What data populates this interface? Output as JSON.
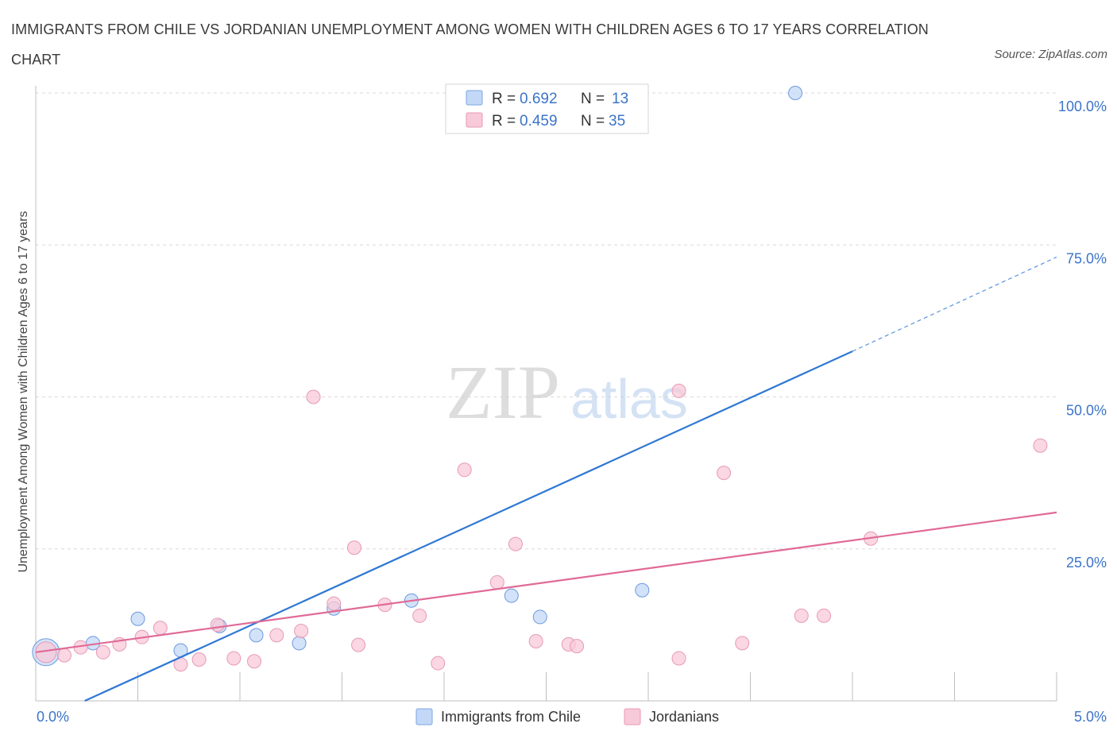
{
  "title": "IMMIGRANTS FROM CHILE VS JORDANIAN UNEMPLOYMENT AMONG WOMEN WITH CHILDREN AGES 6 TO 17 YEARS CORRELATION CHART",
  "source": "Source: ZipAtlas.com",
  "watermark": {
    "zip": "ZIP",
    "atlas": "atlas"
  },
  "colors": {
    "blue": "#2f78d4",
    "blue_fill": "#c3d8f7",
    "pink": "#e06a96",
    "pink_fill": "#f8c9d8",
    "axis_label": "#3b74c9",
    "grid": "#d9d9d9"
  },
  "chart_data": {
    "type": "scatter",
    "title": "IMMIGRANTS FROM CHILE VS JORDANIAN UNEMPLOYMENT AMONG WOMEN WITH CHILDREN AGES 6 TO 17 YEARS CORRELATION CHART",
    "xlabel": "",
    "ylabel": "Unemployment Among Women with Children Ages 6 to 17 years",
    "xlim": [
      0,
      5
    ],
    "ylim": [
      0,
      100
    ],
    "x_tick_labels": [
      {
        "value": 0,
        "label": "0.0%"
      },
      {
        "value": 5,
        "label": "5.0%"
      }
    ],
    "y_tick_labels": [
      {
        "value": 25,
        "label": "25.0%"
      },
      {
        "value": 50,
        "label": "50.0%"
      },
      {
        "value": 75,
        "label": "75.0%"
      },
      {
        "value": 100,
        "label": "100.0%"
      }
    ],
    "legend": {
      "position": "top-center"
    },
    "bottom_legend": [
      "Immigrants from Chile",
      "Jordanians"
    ],
    "series": [
      {
        "name": "Immigrants from Chile",
        "color": "#2f78d4",
        "R": "0.692",
        "N": "13",
        "points": [
          {
            "x": 0.05,
            "y": 8.0,
            "big": true
          },
          {
            "x": 0.28,
            "y": 9.5
          },
          {
            "x": 0.5,
            "y": 13.5
          },
          {
            "x": 0.71,
            "y": 8.3
          },
          {
            "x": 0.9,
            "y": 12.3
          },
          {
            "x": 1.08,
            "y": 10.8
          },
          {
            "x": 1.29,
            "y": 9.5
          },
          {
            "x": 1.46,
            "y": 15.2
          },
          {
            "x": 1.84,
            "y": 16.5
          },
          {
            "x": 2.33,
            "y": 17.3
          },
          {
            "x": 2.47,
            "y": 13.8
          },
          {
            "x": 2.97,
            "y": 18.2
          },
          {
            "x": 3.72,
            "y": 100.0
          }
        ],
        "trend": {
          "x0": 0.24,
          "y0": 0.0,
          "x1": 4.0,
          "y1": 57.5,
          "dash_to_x": 5.0,
          "dash_to_y": 73.0
        }
      },
      {
        "name": "Jordanians",
        "color": "#e06a96",
        "R": "0.459",
        "N": "35",
        "points": [
          {
            "x": 0.05,
            "y": 8.0,
            "big": true
          },
          {
            "x": 0.14,
            "y": 7.5
          },
          {
            "x": 0.22,
            "y": 8.8
          },
          {
            "x": 0.33,
            "y": 8.0
          },
          {
            "x": 0.41,
            "y": 9.3
          },
          {
            "x": 0.52,
            "y": 10.5
          },
          {
            "x": 0.61,
            "y": 12.0
          },
          {
            "x": 0.71,
            "y": 6.0
          },
          {
            "x": 0.8,
            "y": 6.8
          },
          {
            "x": 0.89,
            "y": 12.5
          },
          {
            "x": 0.97,
            "y": 7.0
          },
          {
            "x": 1.07,
            "y": 6.5
          },
          {
            "x": 1.18,
            "y": 10.8
          },
          {
            "x": 1.3,
            "y": 11.5
          },
          {
            "x": 1.36,
            "y": 50.0
          },
          {
            "x": 1.46,
            "y": 16.0
          },
          {
            "x": 1.58,
            "y": 9.2
          },
          {
            "x": 1.56,
            "y": 25.2
          },
          {
            "x": 1.71,
            "y": 15.8
          },
          {
            "x": 1.88,
            "y": 14.0
          },
          {
            "x": 1.97,
            "y": 6.2
          },
          {
            "x": 2.1,
            "y": 38.0
          },
          {
            "x": 2.26,
            "y": 19.5
          },
          {
            "x": 2.35,
            "y": 25.8
          },
          {
            "x": 2.45,
            "y": 9.8
          },
          {
            "x": 2.61,
            "y": 9.3
          },
          {
            "x": 2.65,
            "y": 9.0
          },
          {
            "x": 3.15,
            "y": 7.0
          },
          {
            "x": 3.15,
            "y": 51.0
          },
          {
            "x": 3.37,
            "y": 37.5
          },
          {
            "x": 3.46,
            "y": 9.5
          },
          {
            "x": 3.75,
            "y": 14.0
          },
          {
            "x": 3.86,
            "y": 14.0
          },
          {
            "x": 4.09,
            "y": 26.7
          },
          {
            "x": 4.92,
            "y": 42.0
          }
        ],
        "trend": {
          "x0": 0.0,
          "y0": 8.0,
          "x1": 5.0,
          "y1": 31.0
        }
      }
    ]
  }
}
